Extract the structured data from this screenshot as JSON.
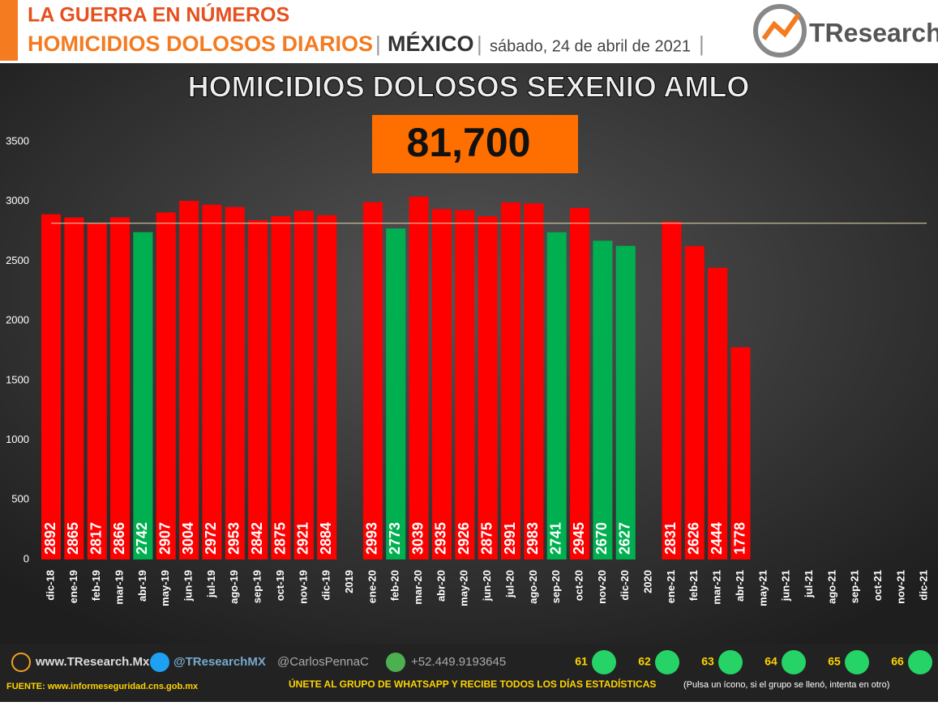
{
  "header": {
    "kicker": "LA GUERRA EN NÚMEROS",
    "topic": "HOMICIDIOS DOLOSOS DIARIOS",
    "place": "MÉXICO",
    "date": "sábado, 24 de abril de 2021",
    "logo": "TResearch"
  },
  "chart_data": {
    "type": "bar",
    "title": "HOMICIDIOS DOLOSOS SEXENIO AMLO",
    "total": "81,700",
    "categories": [
      "dic-18",
      "ene-19",
      "feb-19",
      "mar-19",
      "abr-19",
      "may-19",
      "jun-19",
      "jul-19",
      "ago-19",
      "sep-19",
      "oct-19",
      "nov-19",
      "dic-19",
      "2019",
      "ene-20",
      "feb-20",
      "mar-20",
      "abr-20",
      "may-20",
      "jun-20",
      "jul-20",
      "ago-20",
      "sep-20",
      "oct-20",
      "nov-20",
      "dic-20",
      "2020",
      "ene-21",
      "feb-21",
      "mar-21",
      "abr-21",
      "may-21",
      "jun-21",
      "jul-21",
      "ago-21",
      "sep-21",
      "oct-21",
      "nov-21",
      "dic-21"
    ],
    "values": [
      2892,
      2865,
      2817,
      2866,
      2742,
      2907,
      3004,
      2972,
      2953,
      2842,
      2875,
      2921,
      2884,
      null,
      2993,
      2773,
      3039,
      2935,
      2926,
      2875,
      2991,
      2983,
      2741,
      2945,
      2670,
      2627,
      null,
      2831,
      2626,
      2444,
      1778,
      null,
      null,
      null,
      null,
      null,
      null,
      null,
      null
    ],
    "colors": [
      "#ff0000",
      "#ff0000",
      "#ff0000",
      "#ff0000",
      "#00b050",
      "#ff0000",
      "#ff0000",
      "#ff0000",
      "#ff0000",
      "#ff0000",
      "#ff0000",
      "#ff0000",
      "#ff0000",
      null,
      "#ff0000",
      "#00b050",
      "#ff0000",
      "#ff0000",
      "#ff0000",
      "#ff0000",
      "#ff0000",
      "#ff0000",
      "#00b050",
      "#ff0000",
      "#00b050",
      "#00b050",
      null,
      "#ff0000",
      "#ff0000",
      "#ff0000",
      "#ff0000",
      null,
      null,
      null,
      null,
      null,
      null,
      null,
      null
    ],
    "reference_line": 2817,
    "ylim": [
      0,
      3500
    ],
    "yticks": [
      0,
      500,
      1000,
      1500,
      2000,
      2500,
      3000,
      3500
    ],
    "grid": false
  },
  "footer": {
    "web": "www.TResearch.Mx",
    "twitter": "@TResearchMX",
    "twitter2": "@CarlosPennaC",
    "phone": "+52.449.9193645",
    "groups": [
      61,
      62,
      63,
      64,
      65,
      66
    ],
    "source": "FUENTE: www.informeseguridad.cns.gob.mx",
    "cta": "ÚNETE AL GRUPO DE WHATSAPP Y RECIBE TODOS LOS DÍAS ESTADÍSTICAS",
    "cta_note": "(Pulsa un ícono, si el grupo se llenó, intenta en otro)"
  }
}
